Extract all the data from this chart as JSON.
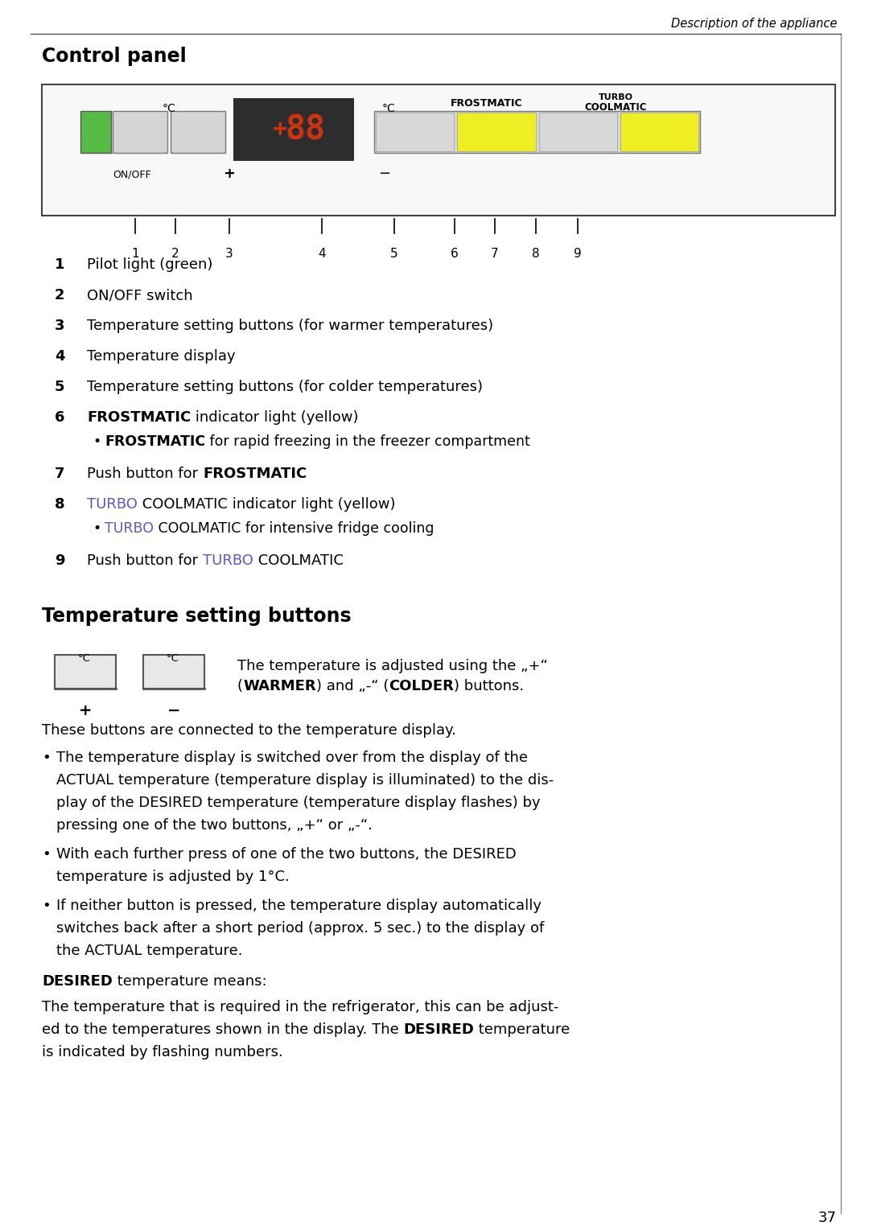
{
  "page_bg": "#ffffff",
  "header_text": "Description of the appliance",
  "section1_title": "Control panel",
  "section2_title": "Temperature setting buttons",
  "page_number": "37",
  "turbo_color": "#6655bb",
  "fig_w": 10.8,
  "fig_h": 15.29,
  "dpi": 100,
  "pw": 1080,
  "ph": 1529
}
